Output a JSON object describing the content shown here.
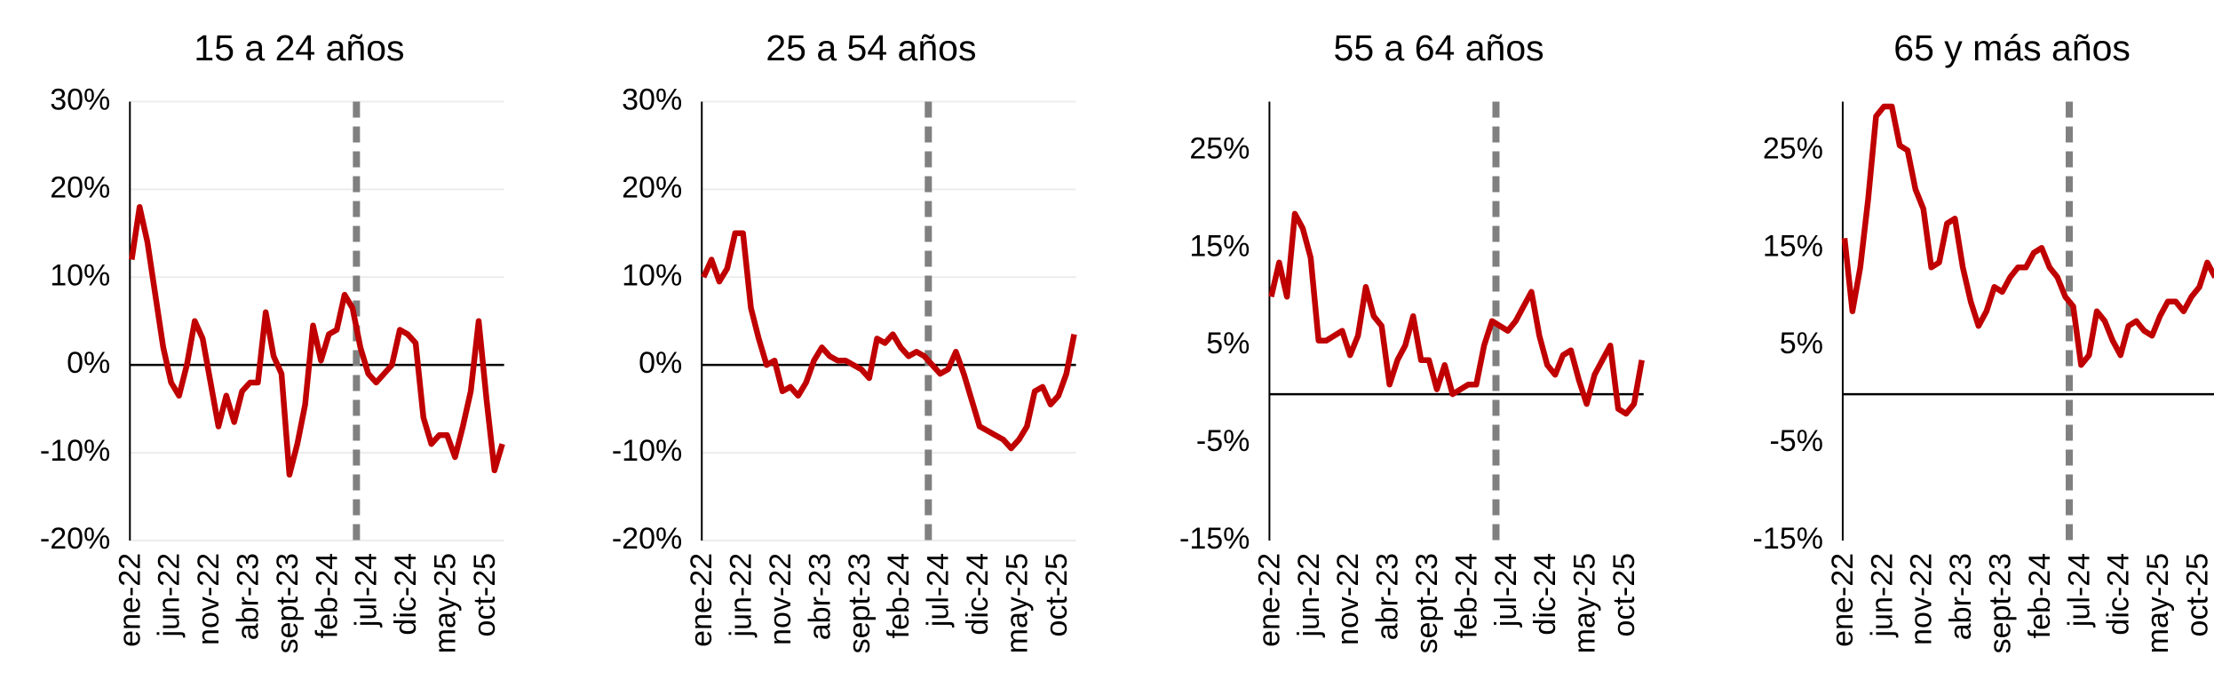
{
  "chart_data": [
    {
      "type": "line",
      "title": "15 a 24 años",
      "categories": [
        "ene-22",
        null,
        null,
        null,
        null,
        "jun-22",
        null,
        null,
        null,
        null,
        "nov-22",
        null,
        null,
        null,
        null,
        "abr-23",
        null,
        null,
        null,
        null,
        "sept-23",
        null,
        null,
        null,
        null,
        "feb-24",
        null,
        null,
        null,
        null,
        "jul-24",
        null,
        null,
        null,
        null,
        "dic-24",
        null,
        null,
        null,
        null,
        "may-25",
        null,
        null,
        null,
        null,
        "oct-25",
        null,
        null
      ],
      "series": [
        {
          "color": "#c00000",
          "values": [
            12,
            18,
            14,
            8,
            2,
            -2,
            -3.5,
            0,
            5,
            3,
            -2,
            -7,
            -3.5,
            -6.5,
            -3,
            -2,
            -2,
            6,
            1,
            -1,
            -12.5,
            -9,
            -4.5,
            4.5,
            0.5,
            3.5,
            4,
            8,
            6.5,
            2,
            -1,
            -2,
            -1,
            0,
            4,
            3.5,
            2.5,
            -6,
            -9,
            -8,
            -8,
            -10.5,
            -7,
            -3,
            5,
            -4,
            -12,
            -9
          ]
        }
      ],
      "ylim": [
        -20,
        30
      ],
      "yticks": [
        {
          "value": -20,
          "label": "-20%"
        },
        {
          "value": -10,
          "label": "-10%"
        },
        {
          "value": 0,
          "label": "0%"
        },
        {
          "value": 10,
          "label": "10%"
        },
        {
          "value": 20,
          "label": "20%"
        },
        {
          "value": 30,
          "label": "30%"
        }
      ],
      "grid": true,
      "vline": 28.5
    },
    {
      "type": "line",
      "title": "25 a 54 años",
      "categories": [
        "ene-22",
        null,
        null,
        null,
        null,
        "jun-22",
        null,
        null,
        null,
        null,
        "nov-22",
        null,
        null,
        null,
        null,
        "abr-23",
        null,
        null,
        null,
        null,
        "sept-23",
        null,
        null,
        null,
        null,
        "feb-24",
        null,
        null,
        null,
        null,
        "jul-24",
        null,
        null,
        null,
        null,
        "dic-24",
        null,
        null,
        null,
        null,
        "may-25",
        null,
        null,
        null,
        null,
        "oct-25",
        null,
        null
      ],
      "series": [
        {
          "color": "#c00000",
          "values": [
            10,
            12,
            9.5,
            11,
            15,
            15,
            6.5,
            3,
            0,
            0.5,
            -3,
            -2.5,
            -3.5,
            -2,
            0.5,
            2,
            1,
            0.5,
            0.5,
            0,
            -0.5,
            -1.5,
            3,
            2.5,
            3.5,
            2,
            1,
            1.5,
            1,
            0,
            -1,
            -0.5,
            1.5,
            -1,
            -4,
            -7,
            -7.5,
            -8,
            -8.5,
            -9.5,
            -8.5,
            -7,
            -3,
            -2.5,
            -4.5,
            -3.5,
            -1,
            3.5
          ]
        }
      ],
      "ylim": [
        -20,
        30
      ],
      "yticks": [
        {
          "value": -20,
          "label": "-20%"
        },
        {
          "value": -10,
          "label": "-10%"
        },
        {
          "value": 0,
          "label": "0%"
        },
        {
          "value": 10,
          "label": "10%"
        },
        {
          "value": 20,
          "label": "20%"
        },
        {
          "value": 30,
          "label": "30%"
        }
      ],
      "grid": true,
      "vline": 28.5
    },
    {
      "type": "line",
      "title": "55 a 64 años",
      "categories": [
        "ene-22",
        null,
        null,
        null,
        null,
        "jun-22",
        null,
        null,
        null,
        null,
        "nov-22",
        null,
        null,
        null,
        null,
        "abr-23",
        null,
        null,
        null,
        null,
        "sept-23",
        null,
        null,
        null,
        null,
        "feb-24",
        null,
        null,
        null,
        null,
        "jul-24",
        null,
        null,
        null,
        null,
        "dic-24",
        null,
        null,
        null,
        null,
        "may-25",
        null,
        null,
        null,
        null,
        "oct-25",
        null,
        null
      ],
      "series": [
        {
          "color": "#c00000",
          "values": [
            10,
            13.5,
            10,
            18.5,
            17,
            14,
            5.5,
            5.5,
            6,
            6.5,
            4,
            6,
            11,
            8,
            7,
            1,
            3.5,
            5,
            8,
            3.5,
            3.5,
            0.5,
            3,
            0,
            0.5,
            1,
            1,
            5,
            7.5,
            7,
            6.5,
            7.5,
            9,
            10.5,
            6,
            3,
            2,
            4,
            4.5,
            1.5,
            -1,
            2,
            3.5,
            5,
            -1.5,
            -2,
            -1,
            3.5
          ]
        }
      ],
      "ylim": [
        -15,
        30
      ],
      "yticks": [
        {
          "value": -15,
          "label": "-15%"
        },
        {
          "value": -5,
          "label": "-5%"
        },
        {
          "value": 5,
          "label": "5%"
        },
        {
          "value": 15,
          "label": "15%"
        },
        {
          "value": 25,
          "label": "25%"
        }
      ],
      "grid": false,
      "vline": 28.5
    },
    {
      "type": "line",
      "title": "65 y más años",
      "categories": [
        "ene-22",
        null,
        null,
        null,
        null,
        "jun-22",
        null,
        null,
        null,
        null,
        "nov-22",
        null,
        null,
        null,
        null,
        "abr-23",
        null,
        null,
        null,
        null,
        "sept-23",
        null,
        null,
        null,
        null,
        "feb-24",
        null,
        null,
        null,
        null,
        "jul-24",
        null,
        null,
        null,
        null,
        "dic-24",
        null,
        null,
        null,
        null,
        "may-25",
        null,
        null,
        null,
        null,
        "oct-25",
        null,
        null
      ],
      "series": [
        {
          "color": "#c00000",
          "values": [
            16,
            8.5,
            13,
            20,
            28.5,
            29.5,
            29.5,
            25.5,
            25,
            21,
            19,
            13,
            13.5,
            17.5,
            18,
            13,
            9.5,
            7,
            8.5,
            11,
            10.5,
            12,
            13,
            13,
            14.5,
            15,
            13,
            12,
            10,
            9,
            3,
            4,
            8.5,
            7.5,
            5.5,
            4,
            7,
            7.5,
            6.5,
            6,
            8,
            9.5,
            9.5,
            8.5,
            10,
            11,
            13.5,
            12
          ]
        }
      ],
      "ylim": [
        -15,
        30
      ],
      "yticks": [
        {
          "value": -15,
          "label": "-15%"
        },
        {
          "value": -5,
          "label": "-5%"
        },
        {
          "value": 5,
          "label": "5%"
        },
        {
          "value": 15,
          "label": "15%"
        },
        {
          "value": 25,
          "label": "25%"
        }
      ],
      "grid": false,
      "vline": 28.5
    }
  ]
}
